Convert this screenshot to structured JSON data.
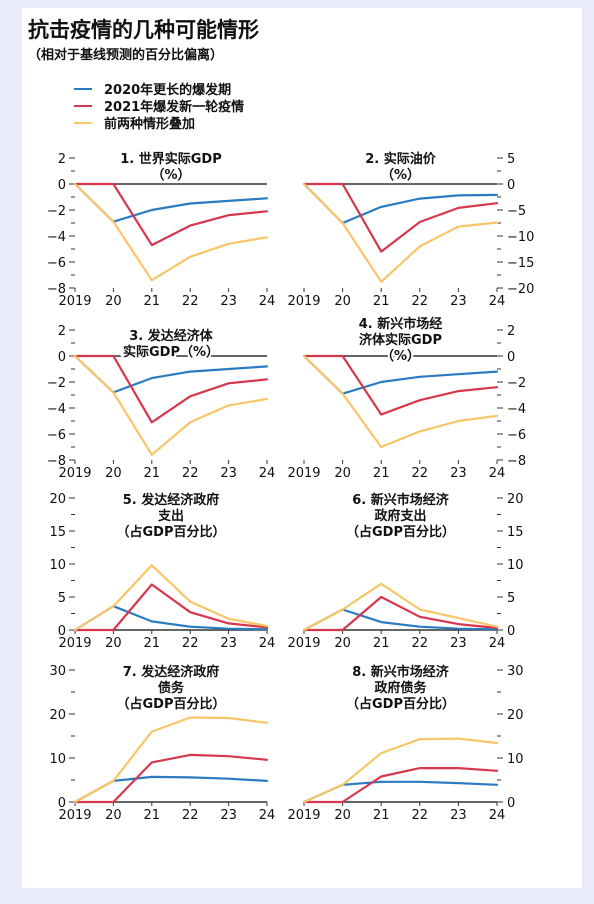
{
  "title": "抗击疫情的几种可能情形",
  "subtitle": "（相对于基线预测的百分比偏离）",
  "colors": {
    "blue": "#2c7bc0",
    "red": "#d6374c",
    "yellow": "#f8c567",
    "axis": "#333333"
  },
  "legend": [
    {
      "label": "2020年更长的爆发期",
      "color": "#2c7bc0"
    },
    {
      "label": "2021年爆发新一轮疫情",
      "color": "#d6374c"
    },
    {
      "label": "前两种情形叠加",
      "color": "#f8c567"
    }
  ],
  "chart_data": [
    {
      "type": "line",
      "title": "1. 世界实际GDP\n（%）",
      "x": [
        "2019",
        "20",
        "21",
        "22",
        "23",
        "24"
      ],
      "ylim": [
        -8,
        2
      ],
      "yticks": [
        2,
        0,
        -2,
        -4,
        -6,
        -8
      ],
      "yticklabels": [
        "2",
        "0",
        "−2",
        "−4",
        "−6",
        "−8"
      ],
      "axis_side": "left",
      "series": [
        {
          "name": "2020年更长的爆发期",
          "values": [
            0,
            -2.9,
            -2.0,
            -1.5,
            -1.3,
            -1.1
          ]
        },
        {
          "name": "2021年爆发新一轮疫情",
          "values": [
            0,
            0,
            -4.7,
            -3.2,
            -2.4,
            -2.1
          ]
        },
        {
          "name": "前两种情形叠加",
          "values": [
            0,
            -2.9,
            -7.4,
            -5.6,
            -4.6,
            -4.1
          ]
        }
      ]
    },
    {
      "type": "line",
      "title": "2. 实际油价\n（%）",
      "x": [
        "2019",
        "20",
        "21",
        "22",
        "23",
        "24"
      ],
      "ylim": [
        -20,
        5
      ],
      "yticks": [
        5,
        0,
        -5,
        -10,
        -15,
        -20
      ],
      "yticklabels": [
        "5",
        "0",
        "−5",
        "−10",
        "−15",
        "−20"
      ],
      "axis_side": "right",
      "series": [
        {
          "name": "2020年更长的爆发期",
          "values": [
            0,
            -7.5,
            -4.4,
            -2.8,
            -2.2,
            -2.1
          ]
        },
        {
          "name": "2021年爆发新一轮疫情",
          "values": [
            0,
            0,
            -13.0,
            -7.3,
            -4.6,
            -3.7
          ]
        },
        {
          "name": "前两种情形叠加",
          "values": [
            0,
            -7.5,
            -18.8,
            -12.0,
            -8.2,
            -7.4
          ]
        }
      ]
    },
    {
      "type": "line",
      "title": "3. 发达经济体\n实际GDP（%）",
      "x": [
        "2019",
        "20",
        "21",
        "22",
        "23",
        "24"
      ],
      "ylim": [
        -8,
        2
      ],
      "yticks": [
        2,
        0,
        -2,
        -4,
        -6,
        -8
      ],
      "yticklabels": [
        "2",
        "0",
        "−2",
        "−4",
        "−6",
        "−8"
      ],
      "axis_side": "left",
      "series": [
        {
          "name": "2020年更长的爆发期",
          "values": [
            0,
            -2.8,
            -1.7,
            -1.2,
            -1.0,
            -0.8
          ]
        },
        {
          "name": "2021年爆发新一轮疫情",
          "values": [
            0,
            0,
            -5.1,
            -3.1,
            -2.1,
            -1.8
          ]
        },
        {
          "name": "前两种情形叠加",
          "values": [
            0,
            -2.8,
            -7.6,
            -5.1,
            -3.8,
            -3.3
          ]
        }
      ]
    },
    {
      "type": "line",
      "title": "4. 新兴市场经\n济体实际GDP\n（%）",
      "x": [
        "2019",
        "20",
        "21",
        "22",
        "23",
        "24"
      ],
      "ylim": [
        -8,
        2
      ],
      "yticks": [
        2,
        0,
        -2,
        -4,
        -6,
        -8
      ],
      "yticklabels": [
        "2",
        "0",
        "−2",
        "−4",
        "−6",
        "−8"
      ],
      "axis_side": "right",
      "series": [
        {
          "name": "2020年更长的爆发期",
          "values": [
            0,
            -2.9,
            -2.0,
            -1.6,
            -1.4,
            -1.2
          ]
        },
        {
          "name": "2021年爆发新一轮疫情",
          "values": [
            0,
            0,
            -4.5,
            -3.4,
            -2.7,
            -2.4
          ]
        },
        {
          "name": "前两种情形叠加",
          "values": [
            0,
            -2.9,
            -7.0,
            -5.8,
            -5.0,
            -4.6
          ]
        }
      ]
    },
    {
      "type": "line",
      "title": "5. 发达经济政府\n支出\n（占GDP百分比）",
      "x": [
        "2019",
        "20",
        "21",
        "22",
        "23",
        "24"
      ],
      "ylim": [
        0,
        20
      ],
      "yticks": [
        0,
        5,
        10,
        15,
        20
      ],
      "yticklabels": [
        "0",
        "5",
        "10",
        "15",
        "20"
      ],
      "axis_side": "left",
      "series": [
        {
          "name": "2020年更长的爆发期",
          "values": [
            0,
            3.6,
            1.3,
            0.5,
            0.2,
            0.1
          ]
        },
        {
          "name": "2021年爆发新一轮疫情",
          "values": [
            0,
            0,
            6.9,
            2.7,
            1.0,
            0.4
          ]
        },
        {
          "name": "前两种情形叠加",
          "values": [
            0,
            3.6,
            9.8,
            4.3,
            1.7,
            0.6
          ]
        }
      ]
    },
    {
      "type": "line",
      "title": "6. 新兴市场经济\n政府支出\n（占GDP百分比）",
      "x": [
        "2019",
        "20",
        "21",
        "22",
        "23",
        "24"
      ],
      "ylim": [
        0,
        20
      ],
      "yticks": [
        0,
        5,
        10,
        15,
        20
      ],
      "yticklabels": [
        "0",
        "5",
        "10",
        "15",
        "20"
      ],
      "axis_side": "right",
      "series": [
        {
          "name": "2020年更长的爆发期",
          "values": [
            0,
            3.1,
            1.2,
            0.5,
            0.2,
            0.1
          ]
        },
        {
          "name": "2021年爆发新一轮疫情",
          "values": [
            0,
            0,
            5.0,
            2.0,
            0.9,
            0.3
          ]
        },
        {
          "name": "前两种情形叠加",
          "values": [
            0,
            3.1,
            7.0,
            3.1,
            1.8,
            0.5
          ]
        }
      ]
    },
    {
      "type": "line",
      "title": "7. 发达经济政府\n债务\n（占GDP百分比）",
      "x": [
        "2019",
        "20",
        "21",
        "22",
        "23",
        "24"
      ],
      "ylim": [
        0,
        30
      ],
      "yticks": [
        0,
        10,
        20,
        30
      ],
      "yticklabels": [
        "0",
        "10",
        "20",
        "30"
      ],
      "axis_side": "left",
      "series": [
        {
          "name": "2020年更长的爆发期",
          "values": [
            0,
            4.8,
            5.7,
            5.6,
            5.3,
            4.8
          ]
        },
        {
          "name": "2021年爆发新一轮疫情",
          "values": [
            0,
            0,
            9.0,
            10.7,
            10.4,
            9.6
          ]
        },
        {
          "name": "前两种情形叠加",
          "values": [
            0,
            4.8,
            16.0,
            19.2,
            19.1,
            18.0
          ]
        }
      ]
    },
    {
      "type": "line",
      "title": "8. 新兴市场经济\n政府债务\n（占GDP百分比）",
      "x": [
        "2019",
        "20",
        "21",
        "22",
        "23",
        "24"
      ],
      "ylim": [
        0,
        30
      ],
      "yticks": [
        0,
        10,
        20,
        30
      ],
      "yticklabels": [
        "0",
        "10",
        "20",
        "30"
      ],
      "axis_side": "right",
      "series": [
        {
          "name": "2020年更长的爆发期",
          "values": [
            0,
            3.9,
            4.6,
            4.6,
            4.3,
            3.9
          ]
        },
        {
          "name": "2021年爆发新一轮疫情",
          "values": [
            0,
            0,
            5.8,
            7.7,
            7.7,
            7.1
          ]
        },
        {
          "name": "前两种情形叠加",
          "values": [
            0,
            3.9,
            11.1,
            14.3,
            14.4,
            13.4
          ]
        }
      ]
    }
  ]
}
